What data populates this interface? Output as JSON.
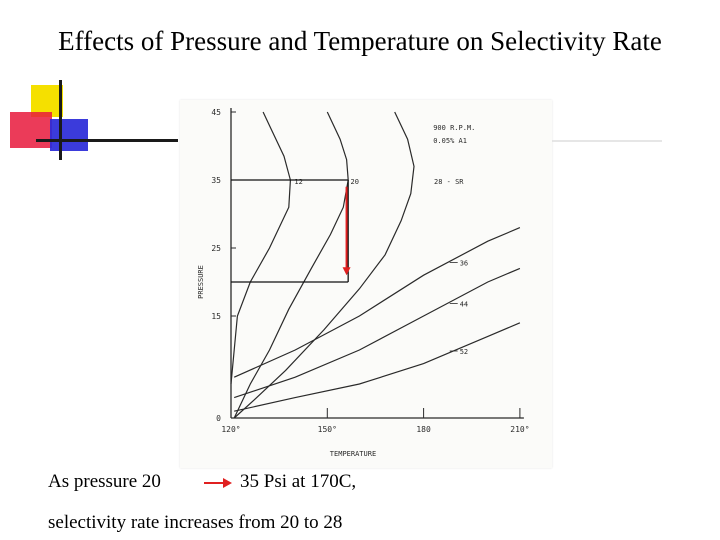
{
  "slide": {
    "title": "Effects of Pressure and Temperature on Selectivity Rate",
    "caption_line1_left": "As pressure 20",
    "caption_line1_right": "35 Psi at 170C,",
    "caption_line2": "selectivity rate increases from 20 to 28"
  },
  "colors": {
    "arrow": "#e02020",
    "logo_yellow": "#f5e000",
    "logo_red": "#e8193c",
    "logo_blue": "#2a2ad8",
    "ink": "#2a2a2a"
  },
  "chart_data": {
    "type": "line",
    "xlabel": "TEMPERATURE",
    "ylabel": "PRESSURE",
    "xlim": [
      120,
      210
    ],
    "ylim": [
      0,
      45
    ],
    "x_ticks": [
      {
        "value": 120,
        "label": "120°"
      },
      {
        "value": 150,
        "label": "150°"
      },
      {
        "value": 180,
        "label": "180"
      },
      {
        "value": 210,
        "label": "210°"
      }
    ],
    "y_ticks": [
      {
        "value": 0,
        "label": "0"
      },
      {
        "value": 15,
        "label": "15"
      },
      {
        "value": 25,
        "label": "25"
      },
      {
        "value": 35,
        "label": "35"
      },
      {
        "value": 45,
        "label": "45"
      }
    ],
    "annotation_lines": [
      "900 R.P.M.",
      "0.05% A1"
    ],
    "series": [
      {
        "name": "12",
        "label_at": [
          138.5,
          35
        ],
        "points": [
          [
            130,
            45
          ],
          [
            133,
            42
          ],
          [
            136.5,
            38.5
          ],
          [
            138.5,
            35
          ],
          [
            138,
            31
          ],
          [
            132,
            25
          ],
          [
            126,
            20
          ],
          [
            122,
            15
          ],
          [
            121,
            10
          ],
          [
            120,
            5
          ]
        ]
      },
      {
        "name": "20",
        "label_at": [
          156,
          35
        ],
        "points": [
          [
            150,
            45
          ],
          [
            154,
            41
          ],
          [
            156,
            38
          ],
          [
            156.5,
            35
          ],
          [
            155,
            31
          ],
          [
            151,
            27
          ],
          [
            145,
            22
          ],
          [
            138,
            16
          ],
          [
            132,
            10
          ],
          [
            126,
            5
          ],
          [
            121,
            0
          ]
        ]
      },
      {
        "name": "28 - SR",
        "label_at": [
          182,
          35
        ],
        "points": [
          [
            171,
            45
          ],
          [
            175,
            41
          ],
          [
            177,
            37
          ],
          [
            176,
            33
          ],
          [
            173,
            29
          ],
          [
            168,
            24
          ],
          [
            160,
            19
          ],
          [
            149,
            13
          ],
          [
            137,
            7
          ],
          [
            128,
            3
          ],
          [
            121,
            0
          ]
        ]
      },
      {
        "name": "36",
        "label_at": [
          190,
          23
        ],
        "points": [
          [
            121,
            6
          ],
          [
            140,
            10
          ],
          [
            160,
            15
          ],
          [
            180,
            21
          ],
          [
            200,
            26
          ],
          [
            210,
            28
          ]
        ]
      },
      {
        "name": "44",
        "label_at": [
          190,
          17
        ],
        "points": [
          [
            121,
            3
          ],
          [
            140,
            6
          ],
          [
            160,
            10
          ],
          [
            180,
            15
          ],
          [
            200,
            20
          ],
          [
            210,
            22
          ]
        ]
      },
      {
        "name": "52",
        "label_at": [
          190,
          10
        ],
        "points": [
          [
            121,
            1
          ],
          [
            140,
            3
          ],
          [
            160,
            5
          ],
          [
            180,
            8
          ],
          [
            200,
            12
          ],
          [
            210,
            14
          ]
        ]
      }
    ],
    "guides": [
      {
        "from": [
          120,
          35
        ],
        "to": [
          156.5,
          35
        ]
      },
      {
        "from": [
          156.5,
          35
        ],
        "to": [
          156.5,
          20
        ]
      },
      {
        "from": [
          120,
          20
        ],
        "to": [
          156.5,
          20
        ]
      }
    ],
    "highlight": {
      "from": [
        156,
        34
      ],
      "to": [
        156,
        21
      ]
    }
  }
}
